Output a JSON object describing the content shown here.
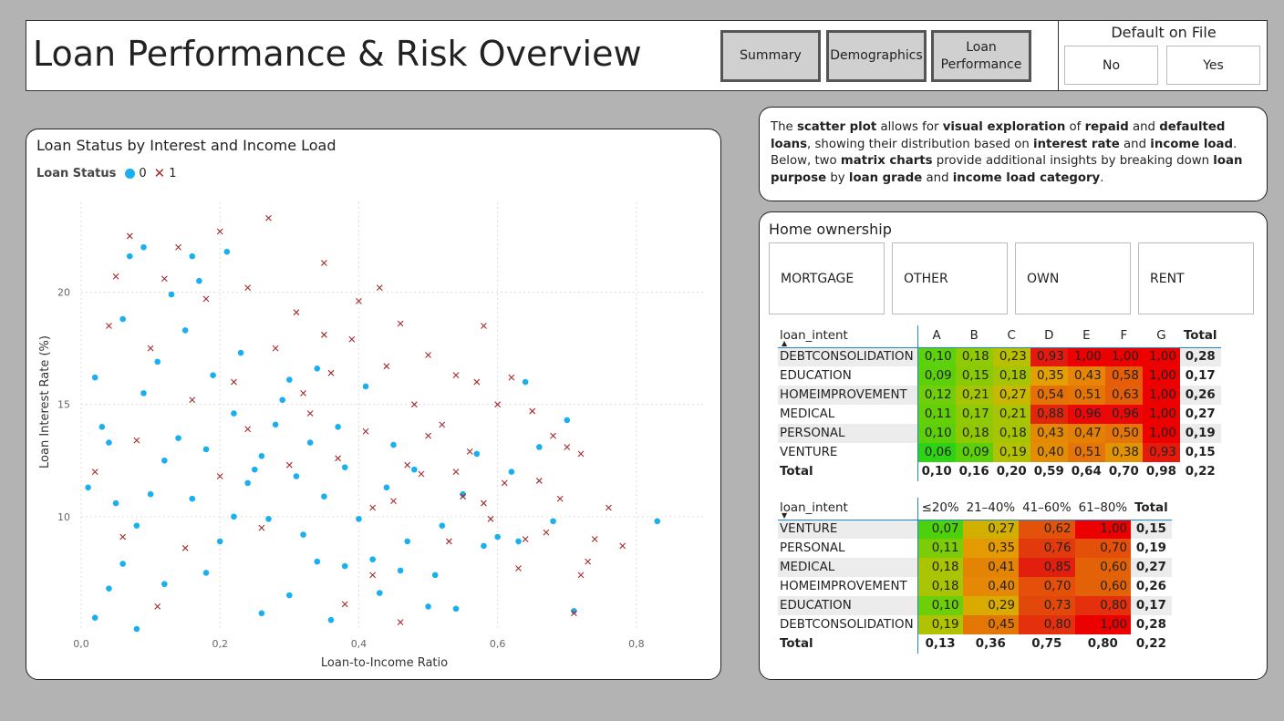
{
  "header": {
    "title": "Loan Performance & Risk Overview",
    "nav": [
      "Summary",
      "Demographics",
      "Loan Performance"
    ],
    "slicer": {
      "title": "Default on File",
      "options": [
        "No",
        "Yes"
      ]
    }
  },
  "scatter": {
    "title": "Loan Status by Interest and Income Load",
    "legend_title": "Loan Status",
    "legend_items": [
      "0",
      "1"
    ],
    "colors": {
      "repaid": "#1ab0ef",
      "defaulted": "#a52a2a"
    }
  },
  "chart_data": {
    "type": "scatter",
    "xlabel": "Loan-to-Income Ratio",
    "ylabel": "Loan Interest Rate (%)",
    "xlim": [
      0,
      0.9
    ],
    "ylim": [
      5,
      24
    ],
    "xticks": [
      "0,0",
      "0,2",
      "0,4",
      "0,6",
      "0,8"
    ],
    "yticks": [
      "10",
      "15",
      "20"
    ],
    "grid": true,
    "legend": "top-left",
    "series": [
      {
        "name": "0",
        "marker": "circle",
        "points": [
          [
            0.02,
            5.5
          ],
          [
            0.04,
            6.8
          ],
          [
            0.06,
            7.9
          ],
          [
            0.08,
            9.6
          ],
          [
            0.1,
            11.0
          ],
          [
            0.12,
            12.5
          ],
          [
            0.14,
            13.5
          ],
          [
            0.05,
            10.6
          ],
          [
            0.03,
            14.0
          ],
          [
            0.09,
            15.5
          ],
          [
            0.11,
            16.9
          ],
          [
            0.15,
            18.3
          ],
          [
            0.18,
            7.5
          ],
          [
            0.2,
            8.9
          ],
          [
            0.22,
            10.0
          ],
          [
            0.24,
            11.5
          ],
          [
            0.26,
            12.7
          ],
          [
            0.28,
            14.1
          ],
          [
            0.3,
            6.5
          ],
          [
            0.32,
            9.2
          ],
          [
            0.35,
            10.9
          ],
          [
            0.38,
            7.8
          ],
          [
            0.42,
            8.1
          ],
          [
            0.46,
            7.6
          ],
          [
            0.5,
            6.0
          ],
          [
            0.13,
            19.9
          ],
          [
            0.17,
            20.5
          ],
          [
            0.07,
            21.6
          ],
          [
            0.02,
            16.2
          ],
          [
            0.06,
            18.8
          ],
          [
            0.19,
            16.3
          ],
          [
            0.23,
            17.3
          ],
          [
            0.27,
            9.9
          ],
          [
            0.31,
            11.8
          ],
          [
            0.33,
            13.3
          ],
          [
            0.36,
            5.4
          ],
          [
            0.4,
            9.9
          ],
          [
            0.44,
            11.3
          ],
          [
            0.48,
            12.1
          ],
          [
            0.52,
            9.6
          ],
          [
            0.55,
            11.0
          ],
          [
            0.57,
            12.8
          ],
          [
            0.6,
            9.1
          ],
          [
            0.63,
            8.9
          ],
          [
            0.64,
            16.0
          ],
          [
            0.68,
            9.8
          ],
          [
            0.7,
            14.3
          ],
          [
            0.71,
            5.8
          ],
          [
            0.83,
            9.8
          ],
          [
            0.09,
            22.0
          ],
          [
            0.16,
            21.6
          ],
          [
            0.21,
            21.8
          ],
          [
            0.25,
            12.1
          ],
          [
            0.29,
            15.2
          ],
          [
            0.34,
            16.6
          ],
          [
            0.37,
            14.0
          ],
          [
            0.41,
            15.8
          ],
          [
            0.45,
            13.2
          ],
          [
            0.01,
            11.3
          ],
          [
            0.04,
            13.3
          ],
          [
            0.08,
            5.0
          ],
          [
            0.12,
            7.0
          ],
          [
            0.16,
            10.8
          ],
          [
            0.18,
            13.0
          ],
          [
            0.22,
            14.6
          ],
          [
            0.26,
            5.7
          ],
          [
            0.3,
            16.1
          ],
          [
            0.34,
            8.0
          ],
          [
            0.38,
            12.2
          ],
          [
            0.43,
            6.6
          ],
          [
            0.47,
            8.9
          ],
          [
            0.51,
            7.4
          ],
          [
            0.54,
            5.9
          ],
          [
            0.58,
            8.7
          ],
          [
            0.62,
            12.0
          ],
          [
            0.66,
            13.1
          ]
        ]
      },
      {
        "name": "1",
        "marker": "x",
        "points": [
          [
            0.07,
            22.5
          ],
          [
            0.14,
            22.0
          ],
          [
            0.2,
            22.7
          ],
          [
            0.27,
            23.3
          ],
          [
            0.35,
            21.3
          ],
          [
            0.4,
            19.6
          ],
          [
            0.43,
            20.2
          ],
          [
            0.46,
            18.6
          ],
          [
            0.5,
            17.2
          ],
          [
            0.54,
            16.3
          ],
          [
            0.57,
            16.0
          ],
          [
            0.58,
            18.5
          ],
          [
            0.6,
            15.0
          ],
          [
            0.62,
            16.2
          ],
          [
            0.65,
            14.7
          ],
          [
            0.68,
            13.6
          ],
          [
            0.7,
            13.1
          ],
          [
            0.72,
            12.8
          ],
          [
            0.76,
            10.4
          ],
          [
            0.74,
            9.0
          ],
          [
            0.78,
            8.7
          ],
          [
            0.72,
            7.4
          ],
          [
            0.66,
            11.6
          ],
          [
            0.61,
            11.5
          ],
          [
            0.56,
            12.9
          ],
          [
            0.52,
            14.1
          ],
          [
            0.48,
            15.0
          ],
          [
            0.44,
            16.7
          ],
          [
            0.39,
            17.9
          ],
          [
            0.35,
            18.1
          ],
          [
            0.31,
            19.1
          ],
          [
            0.24,
            20.2
          ],
          [
            0.18,
            19.7
          ],
          [
            0.12,
            20.6
          ],
          [
            0.05,
            20.7
          ],
          [
            0.04,
            18.5
          ],
          [
            0.1,
            17.5
          ],
          [
            0.16,
            15.2
          ],
          [
            0.22,
            16.0
          ],
          [
            0.28,
            17.5
          ],
          [
            0.33,
            14.6
          ],
          [
            0.37,
            12.6
          ],
          [
            0.41,
            13.8
          ],
          [
            0.45,
            10.7
          ],
          [
            0.49,
            11.9
          ],
          [
            0.53,
            8.9
          ],
          [
            0.55,
            10.9
          ],
          [
            0.59,
            9.9
          ],
          [
            0.63,
            7.7
          ],
          [
            0.67,
            9.3
          ],
          [
            0.71,
            5.7
          ],
          [
            0.42,
            7.4
          ],
          [
            0.46,
            5.3
          ],
          [
            0.38,
            6.1
          ],
          [
            0.3,
            12.3
          ],
          [
            0.26,
            9.5
          ],
          [
            0.2,
            11.8
          ],
          [
            0.15,
            8.6
          ],
          [
            0.08,
            13.4
          ],
          [
            0.02,
            12.0
          ],
          [
            0.06,
            9.1
          ],
          [
            0.11,
            6.0
          ],
          [
            0.24,
            13.9
          ],
          [
            0.32,
            15.5
          ],
          [
            0.36,
            16.4
          ],
          [
            0.42,
            10.4
          ],
          [
            0.47,
            12.3
          ],
          [
            0.5,
            13.6
          ],
          [
            0.54,
            12.0
          ],
          [
            0.58,
            10.6
          ],
          [
            0.64,
            9.0
          ],
          [
            0.69,
            10.8
          ],
          [
            0.73,
            8.0
          ]
        ]
      }
    ]
  },
  "description": {
    "segments": [
      {
        "t": "The ",
        "b": false
      },
      {
        "t": "scatter plot",
        "b": true
      },
      {
        "t": " allows for ",
        "b": false
      },
      {
        "t": "visual exploration",
        "b": true
      },
      {
        "t": " of ",
        "b": false
      },
      {
        "t": "repaid",
        "b": true
      },
      {
        "t": " and ",
        "b": false
      },
      {
        "t": "defaulted loans",
        "b": true
      },
      {
        "t": ", showing their distribution based on ",
        "b": false
      },
      {
        "t": "interest rate",
        "b": true
      },
      {
        "t": " and ",
        "b": false
      },
      {
        "t": "income load",
        "b": true
      },
      {
        "t": ". Below, two ",
        "b": false
      },
      {
        "t": "matrix charts",
        "b": true
      },
      {
        "t": " provide additional insights by breaking down ",
        "b": false
      },
      {
        "t": "loan purpose",
        "b": true
      },
      {
        "t": " by ",
        "b": false
      },
      {
        "t": "loan grade",
        "b": true
      },
      {
        "t": " and ",
        "b": false
      },
      {
        "t": "income load category",
        "b": true
      },
      {
        "t": ".",
        "b": false
      }
    ]
  },
  "home_ownership": {
    "title": "Home ownership",
    "options": [
      "MORTGAGE",
      "OTHER",
      "OWN",
      "RENT"
    ]
  },
  "matrix1": {
    "row_header": "loan_intent",
    "columns": [
      "A",
      "B",
      "C",
      "D",
      "E",
      "F",
      "G"
    ],
    "total_label": "Total",
    "rows": [
      {
        "label": "DEBTCONSOLIDATION",
        "values": [
          "0,10",
          "0,18",
          "0,23",
          "0,93",
          "1,00",
          "1,00",
          "1,00"
        ],
        "total": "0,28"
      },
      {
        "label": "EDUCATION",
        "values": [
          "0,09",
          "0,15",
          "0,18",
          "0,35",
          "0,43",
          "0,58",
          "1,00"
        ],
        "total": "0,17"
      },
      {
        "label": "HOMEIMPROVEMENT",
        "values": [
          "0,12",
          "0,21",
          "0,27",
          "0,54",
          "0,51",
          "0,63",
          "1,00"
        ],
        "total": "0,26"
      },
      {
        "label": "MEDICAL",
        "values": [
          "0,11",
          "0,17",
          "0,21",
          "0,88",
          "0,96",
          "0,96",
          "1,00"
        ],
        "total": "0,27"
      },
      {
        "label": "PERSONAL",
        "values": [
          "0,10",
          "0,18",
          "0,18",
          "0,43",
          "0,47",
          "0,50",
          "1,00"
        ],
        "total": "0,19"
      },
      {
        "label": "VENTURE",
        "values": [
          "0,06",
          "0,09",
          "0,19",
          "0,40",
          "0,51",
          "0,38",
          "0,93"
        ],
        "total": "0,15"
      }
    ],
    "totals": [
      "0,10",
      "0,16",
      "0,20",
      "0,59",
      "0,64",
      "0,70",
      "0,98"
    ],
    "grand_total": "0,22",
    "colors": [
      [
        "#5cd10c",
        "#8ecb05",
        "#b8c000",
        "#e31a10",
        "#ec0000",
        "#ec0000",
        "#ec0000"
      ],
      [
        "#5bd00b",
        "#88ca05",
        "#a5c403",
        "#e4a003",
        "#e88508",
        "#e55d08",
        "#ec0000"
      ],
      [
        "#6fcf0a",
        "#a5c403",
        "#c8b800",
        "#e47006",
        "#e57606",
        "#e55e08",
        "#ec0000"
      ],
      [
        "#65cf0a",
        "#8fca04",
        "#a8c402",
        "#e0270c",
        "#ea0808",
        "#ea0808",
        "#ec0000"
      ],
      [
        "#5bd00b",
        "#91c804",
        "#a7c403",
        "#e28a05",
        "#e48006",
        "#e5740a",
        "#ec0000"
      ],
      [
        "#2ed413",
        "#5bd00b",
        "#b3c100",
        "#e38d05",
        "#e5740a",
        "#e39405",
        "#e51a0a"
      ]
    ]
  },
  "matrix2": {
    "row_header": "loan_intent",
    "columns": [
      "≤20%",
      "21–40%",
      "41–60%",
      "61–80%"
    ],
    "total_label": "Total",
    "rows": [
      {
        "label": "VENTURE",
        "values": [
          "0,07",
          "0,27",
          "0,62",
          "1,00"
        ],
        "total": "0,15"
      },
      {
        "label": "PERSONAL",
        "values": [
          "0,11",
          "0,35",
          "0,76",
          "0,70"
        ],
        "total": "0,19"
      },
      {
        "label": "MEDICAL",
        "values": [
          "0,18",
          "0,41",
          "0,85",
          "0,60"
        ],
        "total": "0,27"
      },
      {
        "label": "HOMEIMPROVEMENT",
        "values": [
          "0,18",
          "0,40",
          "0,70",
          "0,60"
        ],
        "total": "0,26"
      },
      {
        "label": "EDUCATION",
        "values": [
          "0,10",
          "0,29",
          "0,73",
          "0,80"
        ],
        "total": "0,17"
      },
      {
        "label": "DEBTCONSOLIDATION",
        "values": [
          "0,19",
          "0,45",
          "0,80",
          "1,00"
        ],
        "total": "0,28"
      }
    ],
    "totals": [
      "0,13",
      "0,36",
      "0,75",
      "0,80"
    ],
    "grand_total": "0,22",
    "colors": [
      [
        "#4cd10c",
        "#d2b000",
        "#e3520a",
        "#ec0000"
      ],
      [
        "#7ccd07",
        "#e39a03",
        "#e23a0c",
        "#e44f0a"
      ],
      [
        "#a9c402",
        "#e48404",
        "#e21e0e",
        "#e36208"
      ],
      [
        "#a9c402",
        "#e48805",
        "#e44f0a",
        "#e36208"
      ],
      [
        "#6ccf09",
        "#d9aa00",
        "#e3480b",
        "#e4300c"
      ],
      [
        "#b0c200",
        "#e47606",
        "#e4300c",
        "#ec0000"
      ]
    ]
  }
}
